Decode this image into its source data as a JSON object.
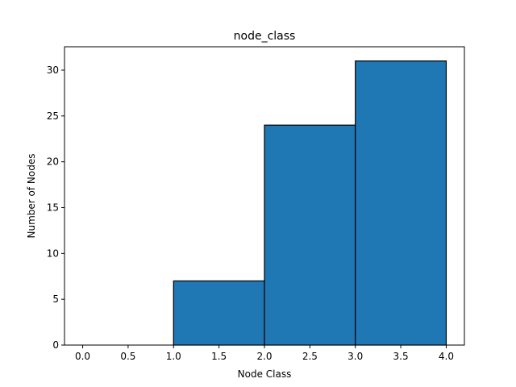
{
  "chart_data": {
    "type": "bar",
    "subtype": "histogram",
    "title": "node_class",
    "xlabel": "Node Class",
    "ylabel": "Number of Nodes",
    "bins": [
      {
        "x0": 0.0,
        "x1": 1.0,
        "count": 0
      },
      {
        "x0": 1.0,
        "x1": 2.0,
        "count": 7
      },
      {
        "x0": 2.0,
        "x1": 3.0,
        "count": 24
      },
      {
        "x0": 3.0,
        "x1": 4.0,
        "count": 31
      }
    ],
    "xlim": [
      -0.2,
      4.2
    ],
    "ylim": [
      0,
      32.55
    ],
    "xticks": [
      0.0,
      0.5,
      1.0,
      1.5,
      2.0,
      2.5,
      3.0,
      3.5,
      4.0
    ],
    "xtick_labels": [
      "0.0",
      "0.5",
      "1.0",
      "1.5",
      "2.0",
      "2.5",
      "3.0",
      "3.5",
      "4.0"
    ],
    "yticks": [
      0,
      5,
      10,
      15,
      20,
      25,
      30
    ],
    "ytick_labels": [
      "0",
      "5",
      "10",
      "15",
      "20",
      "25",
      "30"
    ],
    "grid": false,
    "legend": "none",
    "colors": {
      "bar_fill": "#1f77b4",
      "bar_edge": "#000000",
      "axis": "#000000"
    }
  }
}
